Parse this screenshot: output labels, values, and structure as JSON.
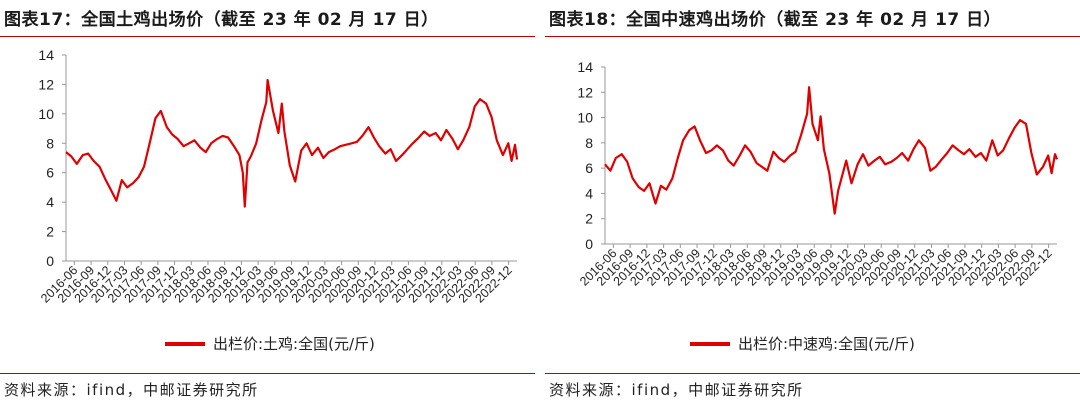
{
  "colors": {
    "series": "#e00000",
    "rule": "#c00000",
    "axis": "#999999"
  },
  "charts": [
    {
      "title": "图表17：全国土鸡出场价（截至 23 年 02 月 17 日）",
      "source": "资料来源：ifind，中邮证券研究所",
      "chart_data": {
        "type": "line",
        "y_ticks": [
          0,
          2,
          4,
          6,
          8,
          10,
          12,
          14
        ],
        "ylim": [
          0,
          14
        ],
        "x_ticks": [
          "2016-06",
          "2016-09",
          "2016-12",
          "2017-03",
          "2017-06",
          "2017-09",
          "2017-12",
          "2018-03",
          "2018-06",
          "2018-09",
          "2018-12",
          "2019-03",
          "2019-06",
          "2019-09",
          "2019-12",
          "2020-03",
          "2020-06",
          "2020-09",
          "2020-12",
          "2021-03",
          "2021-06",
          "2021-09",
          "2021-12",
          "2022-03",
          "2022-06",
          "2022-09",
          "2022-12"
        ],
        "xrange": [
          2016.42,
          2023.13
        ],
        "series": [
          {
            "name": "出栏价:土鸡:全国(元/斤)",
            "x": [
              2016.42,
              2016.5,
              2016.58,
              2016.67,
              2016.75,
              2016.83,
              2016.92,
              2017.0,
              2017.08,
              2017.17,
              2017.25,
              2017.33,
              2017.42,
              2017.5,
              2017.58,
              2017.67,
              2017.75,
              2017.83,
              2017.92,
              2018.0,
              2018.08,
              2018.17,
              2018.25,
              2018.33,
              2018.42,
              2018.5,
              2018.58,
              2018.67,
              2018.75,
              2018.83,
              2018.92,
              2019.0,
              2019.05,
              2019.08,
              2019.12,
              2019.17,
              2019.25,
              2019.33,
              2019.4,
              2019.42,
              2019.5,
              2019.58,
              2019.63,
              2019.67,
              2019.75,
              2019.83,
              2019.92,
              2020.0,
              2020.08,
              2020.17,
              2020.25,
              2020.33,
              2020.42,
              2020.5,
              2020.58,
              2020.67,
              2020.75,
              2020.83,
              2020.92,
              2021.0,
              2021.08,
              2021.17,
              2021.25,
              2021.33,
              2021.42,
              2021.5,
              2021.58,
              2021.67,
              2021.75,
              2021.83,
              2021.92,
              2022.0,
              2022.08,
              2022.17,
              2022.25,
              2022.33,
              2022.42,
              2022.5,
              2022.58,
              2022.67,
              2022.75,
              2022.83,
              2022.92,
              2023.0,
              2023.05,
              2023.1,
              2023.13
            ],
            "y": [
              7.4,
              7.1,
              6.6,
              7.2,
              7.3,
              6.8,
              6.4,
              5.6,
              4.9,
              4.1,
              5.5,
              5.0,
              5.3,
              5.7,
              6.4,
              8.1,
              9.7,
              10.2,
              9.1,
              8.6,
              8.3,
              7.8,
              8.0,
              8.2,
              7.7,
              7.4,
              8.0,
              8.3,
              8.5,
              8.4,
              7.8,
              7.2,
              6.0,
              3.7,
              6.7,
              7.1,
              8.0,
              9.6,
              10.8,
              12.3,
              10.2,
              8.7,
              10.7,
              8.8,
              6.5,
              5.4,
              7.5,
              8.0,
              7.2,
              7.7,
              7.0,
              7.4,
              7.6,
              7.8,
              7.9,
              8.0,
              8.1,
              8.5,
              9.1,
              8.4,
              7.8,
              7.3,
              7.6,
              6.8,
              7.2,
              7.6,
              8.0,
              8.4,
              8.8,
              8.5,
              8.7,
              8.2,
              8.9,
              8.3,
              7.6,
              8.2,
              9.1,
              10.5,
              11.0,
              10.7,
              9.8,
              8.2,
              7.2,
              8.0,
              6.8,
              7.9,
              6.9
            ]
          }
        ]
      }
    },
    {
      "title": "图表18：全国中速鸡出场价（截至 23 年 02 月 17 日）",
      "source": "资料来源：ifind，中邮证券研究所",
      "chart_data": {
        "type": "line",
        "y_ticks": [
          0,
          2,
          4,
          6,
          8,
          10,
          12,
          14
        ],
        "ylim": [
          0,
          14
        ],
        "x_ticks": [
          "2016-06",
          "2016-09",
          "2016-12",
          "2017-03",
          "2017-06",
          "2017-09",
          "2017-12",
          "2018-03",
          "2018-06",
          "2018-09",
          "2018-12",
          "2019-03",
          "2019-06",
          "2019-09",
          "2019-12",
          "2020-03",
          "2020-06",
          "2020-09",
          "2020-12",
          "2021-03",
          "2021-06",
          "2021-09",
          "2021-12",
          "2022-03",
          "2022-06",
          "2022-09",
          "2022-12"
        ],
        "xrange": [
          2016.42,
          2023.13
        ],
        "series": [
          {
            "name": "出栏价:中速鸡:全国(元/斤)",
            "x": [
              2016.42,
              2016.5,
              2016.58,
              2016.67,
              2016.75,
              2016.83,
              2016.92,
              2017.0,
              2017.08,
              2017.17,
              2017.25,
              2017.33,
              2017.42,
              2017.5,
              2017.58,
              2017.67,
              2017.75,
              2017.83,
              2017.92,
              2018.0,
              2018.08,
              2018.17,
              2018.25,
              2018.33,
              2018.42,
              2018.5,
              2018.58,
              2018.67,
              2018.75,
              2018.83,
              2018.92,
              2019.0,
              2019.08,
              2019.17,
              2019.25,
              2019.33,
              2019.42,
              2019.45,
              2019.5,
              2019.58,
              2019.62,
              2019.67,
              2019.75,
              2019.83,
              2019.88,
              2019.92,
              2020.0,
              2020.08,
              2020.17,
              2020.25,
              2020.33,
              2020.42,
              2020.5,
              2020.58,
              2020.67,
              2020.75,
              2020.83,
              2020.92,
              2021.0,
              2021.08,
              2021.17,
              2021.25,
              2021.33,
              2021.42,
              2021.5,
              2021.58,
              2021.67,
              2021.75,
              2021.83,
              2021.92,
              2022.0,
              2022.08,
              2022.17,
              2022.25,
              2022.33,
              2022.42,
              2022.5,
              2022.58,
              2022.67,
              2022.75,
              2022.83,
              2022.92,
              2023.0,
              2023.05,
              2023.1,
              2023.13
            ],
            "y": [
              6.3,
              5.8,
              6.8,
              7.1,
              6.5,
              5.2,
              4.5,
              4.2,
              4.8,
              3.2,
              4.6,
              4.3,
              5.2,
              6.8,
              8.2,
              9.0,
              9.3,
              8.2,
              7.2,
              7.4,
              7.8,
              7.4,
              6.6,
              6.2,
              7.0,
              7.8,
              7.3,
              6.4,
              6.1,
              5.8,
              7.3,
              6.8,
              6.5,
              7.0,
              7.3,
              8.6,
              10.3,
              12.4,
              9.5,
              8.2,
              10.1,
              7.5,
              5.6,
              2.4,
              4.2,
              5.0,
              6.6,
              4.8,
              6.3,
              7.1,
              6.2,
              6.6,
              6.9,
              6.3,
              6.5,
              6.8,
              7.2,
              6.6,
              7.5,
              8.2,
              7.6,
              5.8,
              6.1,
              6.7,
              7.2,
              7.8,
              7.4,
              7.1,
              7.5,
              6.9,
              7.2,
              6.6,
              8.2,
              7.0,
              7.4,
              8.4,
              9.2,
              9.8,
              9.5,
              7.2,
              5.5,
              6.1,
              7.0,
              5.6,
              7.1,
              6.7
            ]
          }
        ]
      }
    }
  ]
}
